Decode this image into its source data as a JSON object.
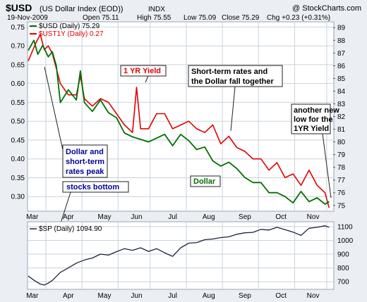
{
  "header": {
    "symbol": "$USD",
    "name": "(US Dollar Index (EOD))",
    "exchange": "INDX",
    "watermark": "@ StockCharts.com",
    "date": "19-Nov-2009",
    "open": "Open 75.11",
    "high": "High 75.55",
    "low": "Low 75.09",
    "close": "Close 75.29",
    "change": "Chg +0.23 (+0.31%)"
  },
  "colors": {
    "dollar": "#007000",
    "yield": "#e00000",
    "sp": "#202040",
    "frame": "#9aa7b8",
    "grid": "#c8d2dc",
    "callout_border": "#202020",
    "callout_bg": "#ffffff",
    "dollar_text": "#000099",
    "background": "#ebeef2"
  },
  "annotations": {
    "one_yr_yield": "1 YR Yield",
    "short_term": [
      "Short-term rates and",
      "the Dollar fall together"
    ],
    "another_low": [
      "another new",
      "low for the",
      "1YR Yield"
    ],
    "dollar_peak": [
      "Dollar and",
      "short-term",
      "rates peak"
    ],
    "stocks_bottom": "stocks bottom",
    "dollar_label": "Dollar"
  },
  "chart_data": [
    {
      "type": "line",
      "panel": "main",
      "x_labels": [
        "Mar",
        "Apr",
        "May",
        "Jun",
        "Jul",
        "Aug",
        "Sep",
        "Oct",
        "Nov"
      ],
      "x_label_weeks": [
        0.5,
        5,
        9.5,
        13.5,
        18,
        22.5,
        27,
        31.5,
        35.5
      ],
      "x_range": [
        0,
        38
      ],
      "left_axis": {
        "ticks": [
          0.3,
          0.35,
          0.4,
          0.45,
          0.5,
          0.55,
          0.6,
          0.65,
          0.7,
          0.75
        ],
        "range": [
          0.263,
          0.762
        ]
      },
      "right_axis": {
        "ticks": [
          75,
          76,
          77,
          78,
          79,
          80,
          81,
          82,
          83,
          84,
          85,
          86,
          87,
          88,
          89
        ],
        "range": [
          74.6,
          89.4
        ]
      },
      "grid": true,
      "legend_position": "top-left",
      "series": [
        {
          "name": "$UST1Y (Daily) 0.27",
          "axis": "left",
          "x": [
            0,
            1,
            1.5,
            2,
            2.5,
            3,
            4,
            5,
            6,
            6.5,
            7,
            8,
            9,
            10,
            11,
            12,
            13,
            13.5,
            14,
            15,
            16,
            17,
            18,
            19,
            20,
            21,
            22,
            23,
            24,
            25,
            26,
            27,
            28,
            29,
            30,
            31,
            32,
            33,
            34,
            35,
            36,
            37,
            37.5
          ],
          "values": [
            0.66,
            0.71,
            0.73,
            0.69,
            0.7,
            0.68,
            0.6,
            0.57,
            0.57,
            0.62,
            0.56,
            0.54,
            0.56,
            0.55,
            0.52,
            0.49,
            0.47,
            0.59,
            0.48,
            0.48,
            0.52,
            0.52,
            0.48,
            0.49,
            0.5,
            0.48,
            0.47,
            0.49,
            0.44,
            0.46,
            0.43,
            0.42,
            0.4,
            0.4,
            0.37,
            0.39,
            0.35,
            0.36,
            0.33,
            0.37,
            0.33,
            0.31,
            0.27
          ]
        },
        {
          "name": "$USD (Daily) 75.29",
          "axis": "right",
          "x": [
            0,
            0.7,
            1.2,
            1.8,
            2.5,
            3,
            3.5,
            4,
            5,
            6,
            6.5,
            7,
            8,
            9,
            10,
            11,
            12,
            13,
            14,
            15,
            16,
            17,
            18,
            19,
            20,
            21,
            22,
            23,
            24,
            25,
            26,
            27,
            28,
            29,
            30,
            31,
            32,
            33,
            34,
            35,
            36,
            37,
            37.5
          ],
          "values": [
            87.2,
            88.0,
            86.9,
            87.6,
            86.7,
            87.1,
            86.0,
            83.1,
            84.1,
            83.3,
            85.6,
            83.1,
            82.4,
            83.3,
            82.3,
            81.9,
            80.7,
            80.4,
            80.2,
            80.0,
            80.3,
            80.6,
            79.7,
            80.6,
            80.1,
            79.4,
            79.6,
            78.5,
            78.1,
            78.4,
            77.9,
            77.2,
            76.8,
            76.8,
            76.0,
            76.0,
            75.7,
            75.2,
            76.1,
            75.3,
            75.6,
            75.1,
            75.3
          ]
        }
      ]
    },
    {
      "type": "line",
      "panel": "lower",
      "legend": "$SP (Daily) 1094.90",
      "x_range": [
        0,
        38
      ],
      "y_ticks": [
        700,
        800,
        900,
        1000,
        1100
      ],
      "y_range": [
        650,
        1130
      ],
      "grid": true,
      "series": [
        {
          "name": "$SP (Daily) 1094.90",
          "x": [
            0,
            0.5,
            1,
            1.5,
            2,
            2.5,
            3,
            4,
            5,
            6,
            7,
            8,
            9,
            10,
            11,
            12,
            13,
            14,
            15,
            16,
            17,
            18,
            19,
            20,
            21,
            22,
            23,
            24,
            25,
            26,
            27,
            28,
            29,
            30,
            31,
            32,
            33,
            34,
            35,
            36,
            37,
            37.5
          ],
          "values": [
            742,
            720,
            700,
            683,
            676,
            690,
            710,
            768,
            800,
            835,
            858,
            872,
            900,
            893,
            918,
            940,
            928,
            946,
            920,
            940,
            910,
            884,
            946,
            980,
            984,
            1005,
            1010,
            1020,
            1026,
            1044,
            1055,
            1058,
            1080,
            1075,
            1095,
            1078,
            1060,
            1036,
            1088,
            1095,
            1106,
            1095
          ]
        }
      ]
    }
  ]
}
